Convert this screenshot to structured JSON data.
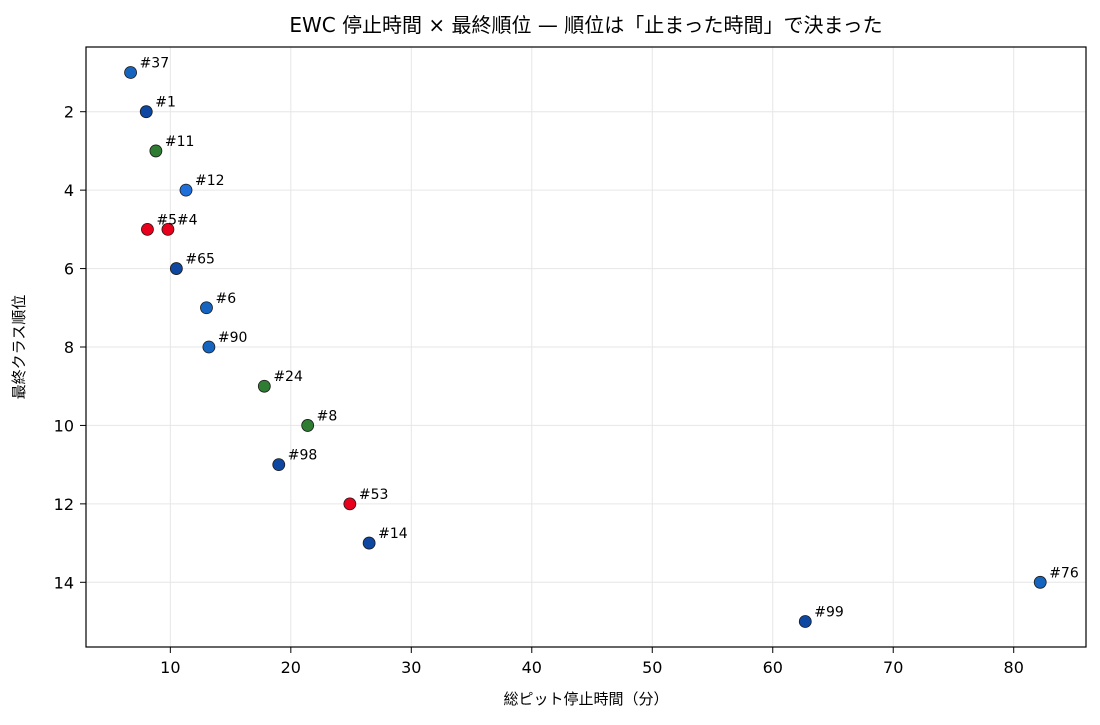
{
  "chart_data": {
    "type": "scatter",
    "title": "EWC 停止時間 × 最終順位 — 順位は「止まった時間」で決まった",
    "xlabel": "総ピット停止時間（分）",
    "ylabel": "最終クラス順位",
    "xlim": [
      3,
      86
    ],
    "ylim": [
      15.65,
      0.35
    ],
    "y_inverted": true,
    "grid": true,
    "x_ticks": [
      10,
      20,
      30,
      40,
      50,
      60,
      70,
      80
    ],
    "y_ticks": [
      2,
      4,
      6,
      8,
      10,
      12,
      14
    ],
    "points": [
      {
        "label": "#37",
        "x": 6.7,
        "y": 1,
        "color": "#1565c0"
      },
      {
        "label": "#1",
        "x": 8.0,
        "y": 2,
        "color": "#0d47a1"
      },
      {
        "label": "#11",
        "x": 8.8,
        "y": 3,
        "color": "#2e7d32"
      },
      {
        "label": "#12",
        "x": 11.3,
        "y": 4,
        "color": "#1e6fd9"
      },
      {
        "label": "#5",
        "x": 8.1,
        "y": 5,
        "color": "#e8001c"
      },
      {
        "label": "#4",
        "x": 9.8,
        "y": 5,
        "color": "#e8001c"
      },
      {
        "label": "#65",
        "x": 10.5,
        "y": 6,
        "color": "#0d47a1"
      },
      {
        "label": "#6",
        "x": 13.0,
        "y": 7,
        "color": "#1565c0"
      },
      {
        "label": "#90",
        "x": 13.2,
        "y": 8,
        "color": "#1565c0"
      },
      {
        "label": "#24",
        "x": 17.8,
        "y": 9,
        "color": "#2e7d32"
      },
      {
        "label": "#8",
        "x": 21.4,
        "y": 10,
        "color": "#2e7d32"
      },
      {
        "label": "#98",
        "x": 19.0,
        "y": 11,
        "color": "#0d47a1"
      },
      {
        "label": "#53",
        "x": 24.9,
        "y": 12,
        "color": "#e8001c"
      },
      {
        "label": "#14",
        "x": 26.5,
        "y": 13,
        "color": "#0d47a1"
      },
      {
        "label": "#76",
        "x": 82.2,
        "y": 14,
        "color": "#1565c0"
      },
      {
        "label": "#99",
        "x": 62.7,
        "y": 15,
        "color": "#0d47a1"
      }
    ]
  }
}
